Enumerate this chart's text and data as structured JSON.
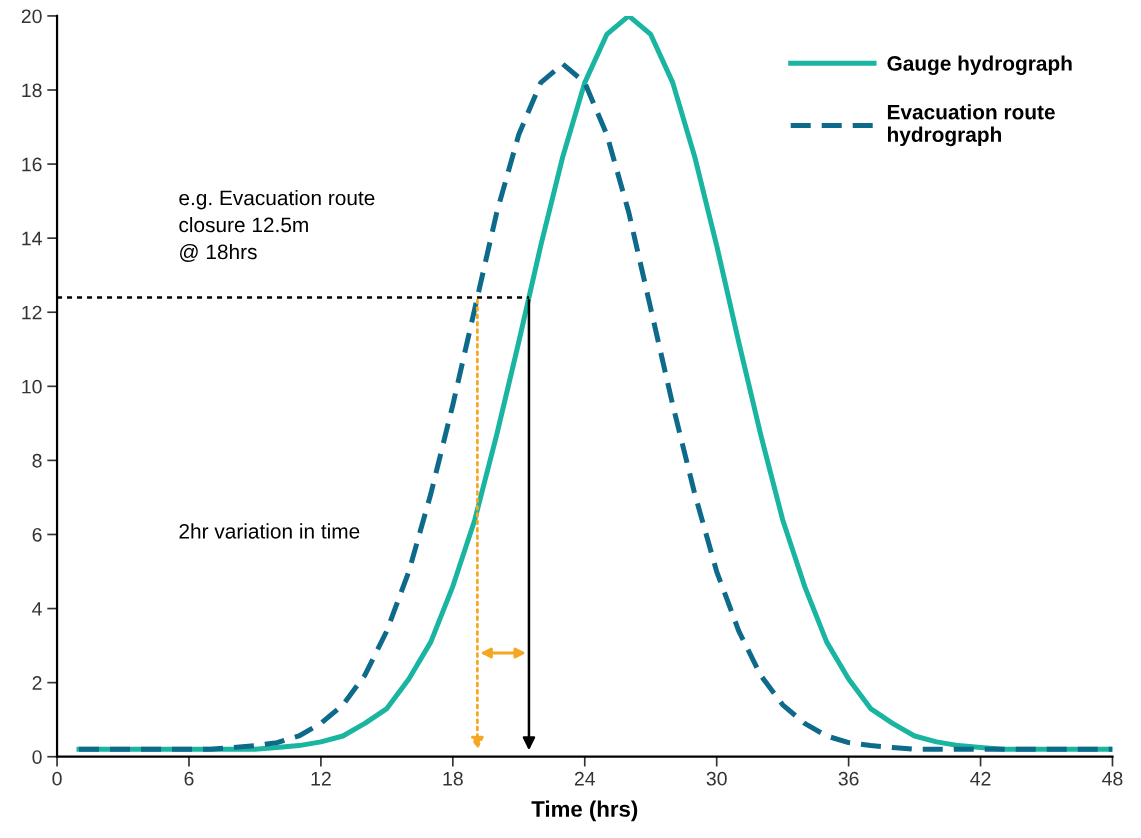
{
  "chart_data": {
    "type": "line",
    "xlabel": "Time (hrs)",
    "x": [
      1,
      2,
      3,
      4,
      5,
      6,
      7,
      8,
      9,
      10,
      11,
      12,
      13,
      14,
      15,
      16,
      17,
      18,
      19,
      20,
      21,
      22,
      23,
      24,
      25,
      26,
      27,
      28,
      29,
      30,
      31,
      32,
      33,
      34,
      35,
      36,
      37,
      38,
      39,
      40,
      41,
      42,
      43,
      44,
      45,
      46,
      47,
      48
    ],
    "series": [
      {
        "name": "Gauge hydrograph",
        "color": "#1ab5a0",
        "line_style": "solid",
        "values": [
          0.2,
          0.2,
          0.2,
          0.2,
          0.2,
          0.2,
          0.2,
          0.2,
          0.2,
          0.25,
          0.3,
          0.4,
          0.56,
          0.9,
          1.3,
          2.1,
          3.1,
          4.6,
          6.4,
          8.7,
          11.2,
          13.8,
          16.2,
          18.2,
          19.5,
          20,
          19.5,
          18.2,
          16.2,
          13.8,
          11.2,
          8.7,
          6.4,
          4.6,
          3.1,
          2.1,
          1.3,
          0.9,
          0.56,
          0.4,
          0.3,
          0.25,
          0.2,
          0.2,
          0.2,
          0.2,
          0.2,
          0.2
        ]
      },
      {
        "name": "Evacuation route\nhydrograph",
        "color": "#0e6a8a",
        "line_style": "dashed",
        "values": [
          0.2,
          0.2,
          0.2,
          0.2,
          0.2,
          0.2,
          0.2,
          0.25,
          0.3,
          0.38,
          0.56,
          0.9,
          1.4,
          2.2,
          3.4,
          5.0,
          7.1,
          9.5,
          12.1,
          14.7,
          16.8,
          18.2,
          18.7,
          18.2,
          16.8,
          14.7,
          12.1,
          9.5,
          7.1,
          5.0,
          3.4,
          2.2,
          1.4,
          0.9,
          0.56,
          0.38,
          0.3,
          0.25,
          0.2,
          0.2,
          0.2,
          0.2,
          0.2,
          0.2,
          0.2,
          0.2,
          0.2,
          0.2
        ]
      }
    ],
    "xlim": [
      0,
      48
    ],
    "xticks": [
      0,
      6,
      12,
      18,
      24,
      30,
      36,
      42,
      48
    ],
    "ylim": [
      0,
      20
    ],
    "yticks": [
      0,
      2,
      4,
      6,
      8,
      10,
      12,
      14,
      16,
      18,
      20
    ],
    "ref_lines": [
      {
        "axis": "y",
        "value": 12.4,
        "color": "#000000",
        "line_style": "dotted"
      }
    ],
    "annotations": [
      "e.g. Evacuation route\nclosure 12.5m\n@ 18hrs",
      "2hr variation in time"
    ],
    "grid": false,
    "legend": "top right",
    "marker": "none"
  }
}
